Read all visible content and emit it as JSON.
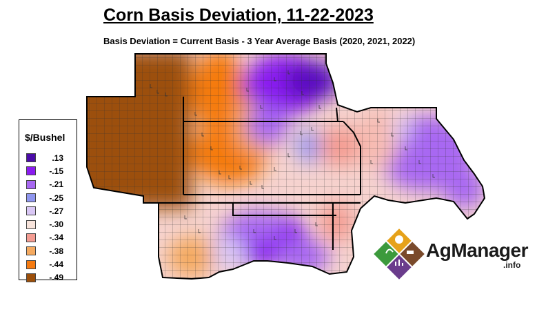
{
  "title": "Corn Basis Deviation, 11-22-2023",
  "subtitle": "Basis Deviation = Current Basis - 3 Year Average Basis (2020, 2021, 2022)",
  "legend": {
    "title": "$/Bushel",
    "items": [
      {
        "label": ".13",
        "color": "#4b0ca8"
      },
      {
        "label": "-.15",
        "color": "#8a1bf0"
      },
      {
        "label": "-.21",
        "color": "#a868f2"
      },
      {
        "label": "-.25",
        "color": "#8f96ef"
      },
      {
        "label": "-.27",
        "color": "#d9c7f5"
      },
      {
        "label": "-.30",
        "color": "#f8e4dc"
      },
      {
        "label": "-.34",
        "color": "#f49c92"
      },
      {
        "label": "-.38",
        "color": "#f5aa60"
      },
      {
        "label": "-.44",
        "color": "#f57a10"
      },
      {
        "label": "-.49",
        "color": "#9c4f0a"
      }
    ]
  },
  "logo": {
    "name": "AgManager",
    "suffix": ".info"
  }
}
